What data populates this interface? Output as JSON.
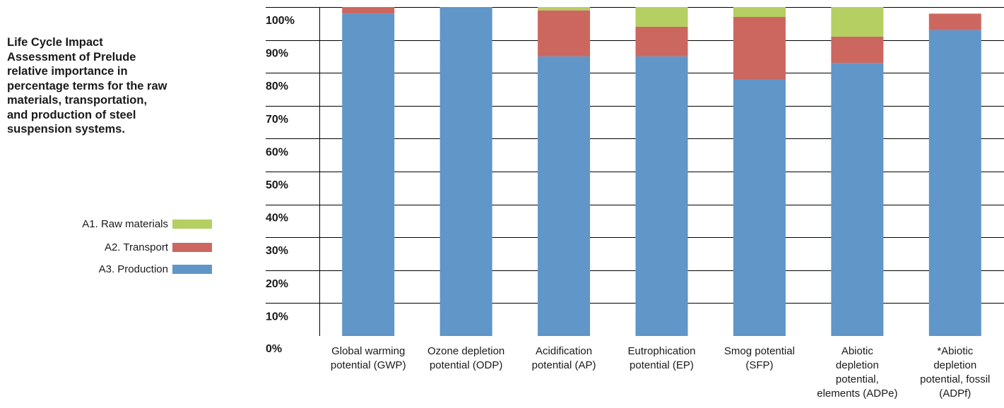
{
  "title_lines": [
    "Life Cycle Impact",
    "Assessment of Prelude",
    "relative importance in",
    "percentage terms for the raw",
    "materials, transportation,",
    "and production of steel",
    "suspension systems."
  ],
  "colors": {
    "raw_materials": "#b5cf62",
    "transport": "#cc6760",
    "production": "#6096c8",
    "grid": "#000000",
    "text": "#1a1a1a"
  },
  "chart_data": {
    "type": "bar",
    "stacked": true,
    "y_tick_labels": [
      "0%",
      "10%",
      "20%",
      "30%",
      "40%",
      "50%",
      "60%",
      "70%",
      "80%",
      "90%",
      "100%"
    ],
    "ylim": [
      0,
      100
    ],
    "grid": true,
    "legend_placement": "left",
    "categories": [
      [
        "Global warming",
        "potential (GWP)"
      ],
      [
        "Ozone depletion",
        "potential (ODP)"
      ],
      [
        "Acidification",
        "potential (AP)"
      ],
      [
        "Eutrophication",
        "potential (EP)"
      ],
      [
        "Smog potential",
        "(SFP)"
      ],
      [
        "Abiotic",
        "depletion",
        "potential,",
        "elements (ADPe)"
      ],
      [
        "*Abiotic",
        "depletion",
        "potential, fossil",
        "(ADPf)"
      ]
    ],
    "series": [
      {
        "name": "A3. Production",
        "color_key": "production",
        "values": [
          98,
          103,
          85,
          85,
          78,
          83,
          93
        ]
      },
      {
        "name": "A2. Transport",
        "color_key": "transport",
        "values": [
          5,
          0,
          14,
          9,
          19,
          8,
          5
        ]
      },
      {
        "name": "A1. Raw materials",
        "color_key": "raw_materials",
        "values": [
          0,
          0,
          3,
          9,
          6,
          12,
          0
        ]
      }
    ],
    "legend_order": [
      "A1. Raw materials",
      "A2. Transport",
      "A3. Production"
    ]
  }
}
